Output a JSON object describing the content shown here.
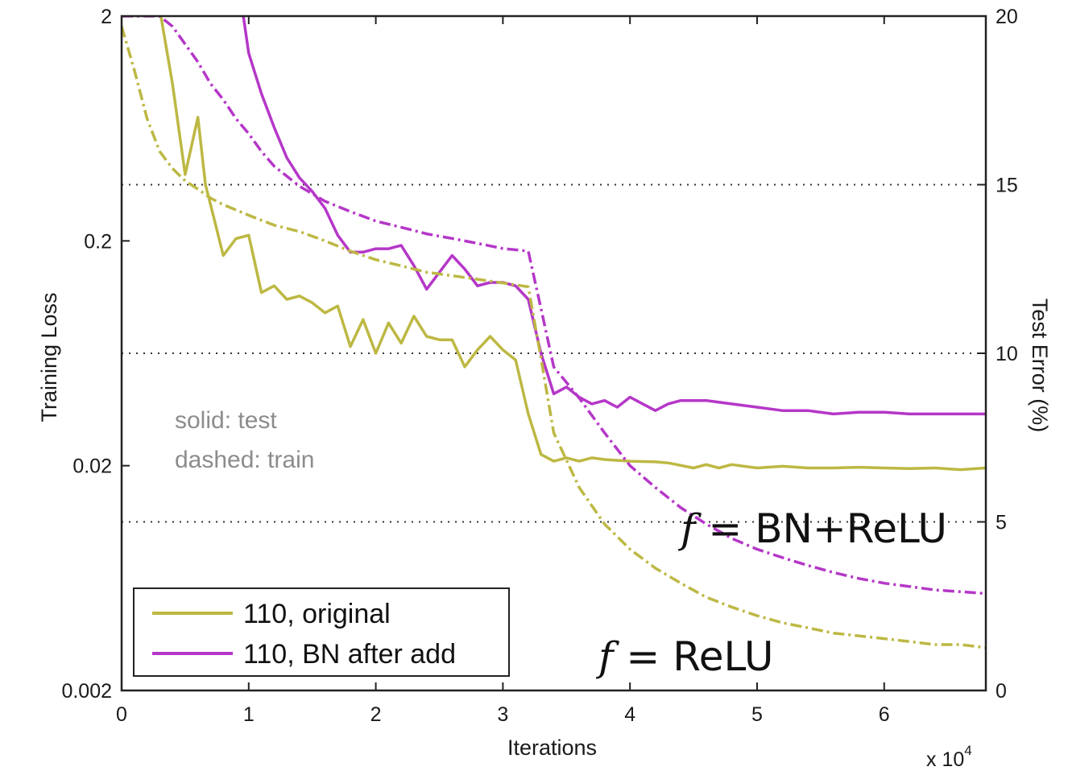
{
  "chart_data": {
    "type": "line",
    "xlabel": "Iterations",
    "x_multiplier_label": "x 10",
    "x_multiplier_exp": "4",
    "ylabel_left": "Training Loss",
    "ylabel_right": "Test Error (%)",
    "x_range": [
      0,
      68000
    ],
    "x_ticks": [
      0,
      10000,
      20000,
      30000,
      40000,
      50000,
      60000
    ],
    "x_tick_labels": [
      "0",
      "1",
      "2",
      "3",
      "4",
      "5",
      "6"
    ],
    "y_left_scale": "log",
    "y_left_range": [
      0.002,
      2
    ],
    "y_left_ticks": [
      0.002,
      0.02,
      0.2,
      2
    ],
    "y_left_tick_labels": [
      "0.002",
      "0.02",
      "0.2",
      "2"
    ],
    "y_right_range": [
      0,
      20
    ],
    "y_right_ticks": [
      0,
      5,
      10,
      15,
      20
    ],
    "y_right_tick_labels": [
      "0",
      "5",
      "10",
      "15",
      "20"
    ],
    "grid": "dotted horizontal lines at right-axis 5, 10, 15",
    "annotations": [
      "solid: test",
      "dashed: train"
    ],
    "function_labels": [
      {
        "italic": "f",
        "rest": " = BN+ReLU"
      },
      {
        "italic": "f",
        "rest": " = ReLU"
      }
    ],
    "legend": {
      "placement": "bottom-left",
      "entries": [
        "110, original",
        "110, BN after add"
      ]
    },
    "series": [
      {
        "name": "110, original",
        "role": "test",
        "style": "solid",
        "color": "#bdb843",
        "axis": "right",
        "points": [
          [
            3000,
            20.2
          ],
          [
            4000,
            18.0
          ],
          [
            5000,
            15.3
          ],
          [
            6000,
            17.0
          ],
          [
            6600,
            15.0
          ],
          [
            7000,
            14.4
          ],
          [
            8000,
            12.9
          ],
          [
            9000,
            13.4
          ],
          [
            10000,
            13.5
          ],
          [
            11000,
            11.8
          ],
          [
            12000,
            12.0
          ],
          [
            13000,
            11.6
          ],
          [
            14000,
            11.7
          ],
          [
            15000,
            11.5
          ],
          [
            16000,
            11.2
          ],
          [
            17000,
            11.4
          ],
          [
            18000,
            10.2
          ],
          [
            19000,
            11.0
          ],
          [
            20000,
            10.0
          ],
          [
            21000,
            10.9
          ],
          [
            22000,
            10.3
          ],
          [
            23000,
            11.1
          ],
          [
            24000,
            10.5
          ],
          [
            25000,
            10.4
          ],
          [
            26000,
            10.4
          ],
          [
            27000,
            9.6
          ],
          [
            28000,
            10.1
          ],
          [
            29000,
            10.5
          ],
          [
            30000,
            10.1
          ],
          [
            31000,
            9.8
          ],
          [
            32000,
            8.2
          ],
          [
            33000,
            7.0
          ],
          [
            34000,
            6.8
          ],
          [
            35000,
            6.9
          ],
          [
            36000,
            6.8
          ],
          [
            37000,
            6.9
          ],
          [
            38000,
            6.85
          ],
          [
            40000,
            6.8
          ],
          [
            42000,
            6.78
          ],
          [
            43000,
            6.75
          ],
          [
            45000,
            6.6
          ],
          [
            46000,
            6.7
          ],
          [
            47000,
            6.6
          ],
          [
            48000,
            6.7
          ],
          [
            50000,
            6.6
          ],
          [
            52000,
            6.65
          ],
          [
            54000,
            6.6
          ],
          [
            56000,
            6.6
          ],
          [
            58000,
            6.62
          ],
          [
            60000,
            6.6
          ],
          [
            62000,
            6.58
          ],
          [
            64000,
            6.6
          ],
          [
            66000,
            6.55
          ],
          [
            68000,
            6.6
          ]
        ]
      },
      {
        "name": "110, BN after add",
        "role": "test",
        "style": "solid",
        "color": "#b537c8",
        "axis": "right",
        "points": [
          [
            9500,
            20.2
          ],
          [
            10000,
            18.9
          ],
          [
            11000,
            17.7
          ],
          [
            12000,
            16.7
          ],
          [
            13000,
            15.8
          ],
          [
            14000,
            15.2
          ],
          [
            15000,
            14.8
          ],
          [
            16000,
            14.3
          ],
          [
            17000,
            13.5
          ],
          [
            18000,
            13.0
          ],
          [
            19000,
            13.0
          ],
          [
            20000,
            13.1
          ],
          [
            21000,
            13.1
          ],
          [
            22000,
            13.2
          ],
          [
            23000,
            12.6
          ],
          [
            24000,
            11.9
          ],
          [
            25000,
            12.4
          ],
          [
            26000,
            12.9
          ],
          [
            27000,
            12.5
          ],
          [
            28000,
            12.0
          ],
          [
            29000,
            12.1
          ],
          [
            30000,
            12.1
          ],
          [
            31000,
            12.0
          ],
          [
            32000,
            11.6
          ],
          [
            33000,
            10.0
          ],
          [
            34000,
            8.8
          ],
          [
            35000,
            9.0
          ],
          [
            36000,
            8.7
          ],
          [
            37000,
            8.5
          ],
          [
            38000,
            8.6
          ],
          [
            39000,
            8.4
          ],
          [
            40000,
            8.7
          ],
          [
            41000,
            8.5
          ],
          [
            42000,
            8.3
          ],
          [
            43000,
            8.5
          ],
          [
            44000,
            8.6
          ],
          [
            45000,
            8.6
          ],
          [
            46000,
            8.6
          ],
          [
            48000,
            8.5
          ],
          [
            50000,
            8.4
          ],
          [
            52000,
            8.3
          ],
          [
            54000,
            8.3
          ],
          [
            56000,
            8.2
          ],
          [
            58000,
            8.25
          ],
          [
            60000,
            8.25
          ],
          [
            62000,
            8.2
          ],
          [
            64000,
            8.2
          ],
          [
            66000,
            8.2
          ],
          [
            68000,
            8.2
          ]
        ]
      },
      {
        "name": "110, original",
        "role": "train",
        "style": "dashed",
        "color": "#bdb843",
        "axis": "left",
        "points": [
          [
            0,
            1.8
          ],
          [
            1000,
            1.15
          ],
          [
            2000,
            0.7
          ],
          [
            3000,
            0.5
          ],
          [
            4000,
            0.42
          ],
          [
            5000,
            0.37
          ],
          [
            6000,
            0.34
          ],
          [
            7000,
            0.31
          ],
          [
            8000,
            0.29
          ],
          [
            10000,
            0.26
          ],
          [
            12000,
            0.235
          ],
          [
            14000,
            0.22
          ],
          [
            16000,
            0.2
          ],
          [
            18000,
            0.18
          ],
          [
            20000,
            0.165
          ],
          [
            22000,
            0.155
          ],
          [
            24000,
            0.145
          ],
          [
            26000,
            0.14
          ],
          [
            28000,
            0.135
          ],
          [
            30000,
            0.13
          ],
          [
            32000,
            0.125
          ],
          [
            33000,
            0.06
          ],
          [
            34000,
            0.028
          ],
          [
            36000,
            0.016
          ],
          [
            38000,
            0.011
          ],
          [
            40000,
            0.0085
          ],
          [
            42000,
            0.007
          ],
          [
            44000,
            0.006
          ],
          [
            46000,
            0.0052
          ],
          [
            48000,
            0.0047
          ],
          [
            50000,
            0.0043
          ],
          [
            52000,
            0.004
          ],
          [
            54000,
            0.0038
          ],
          [
            56000,
            0.0036
          ],
          [
            58000,
            0.0035
          ],
          [
            60000,
            0.0034
          ],
          [
            62000,
            0.0033
          ],
          [
            64000,
            0.0032
          ],
          [
            66000,
            0.0032
          ],
          [
            68000,
            0.0031
          ]
        ]
      },
      {
        "name": "110, BN after add",
        "role": "train",
        "style": "dashed",
        "color": "#b537c8",
        "axis": "left",
        "points": [
          [
            0,
            2.0
          ],
          [
            3000,
            2.0
          ],
          [
            4000,
            1.8
          ],
          [
            5000,
            1.5
          ],
          [
            6000,
            1.25
          ],
          [
            7000,
            1.0
          ],
          [
            8000,
            0.85
          ],
          [
            9000,
            0.7
          ],
          [
            10000,
            0.6
          ],
          [
            11000,
            0.5
          ],
          [
            12000,
            0.43
          ],
          [
            14000,
            0.35
          ],
          [
            16000,
            0.3
          ],
          [
            18000,
            0.27
          ],
          [
            20000,
            0.245
          ],
          [
            22000,
            0.23
          ],
          [
            24000,
            0.215
          ],
          [
            26000,
            0.205
          ],
          [
            28000,
            0.195
          ],
          [
            30000,
            0.185
          ],
          [
            32000,
            0.18
          ],
          [
            33000,
            0.1
          ],
          [
            34000,
            0.055
          ],
          [
            36000,
            0.04
          ],
          [
            38000,
            0.028
          ],
          [
            40000,
            0.02
          ],
          [
            42000,
            0.016
          ],
          [
            44000,
            0.013
          ],
          [
            46000,
            0.011
          ],
          [
            48000,
            0.0095
          ],
          [
            50000,
            0.0085
          ],
          [
            52000,
            0.0078
          ],
          [
            54000,
            0.0072
          ],
          [
            56000,
            0.0067
          ],
          [
            58000,
            0.0063
          ],
          [
            60000,
            0.006
          ],
          [
            62000,
            0.0058
          ],
          [
            64000,
            0.0056
          ],
          [
            66000,
            0.0055
          ],
          [
            68000,
            0.0054
          ]
        ]
      }
    ]
  }
}
